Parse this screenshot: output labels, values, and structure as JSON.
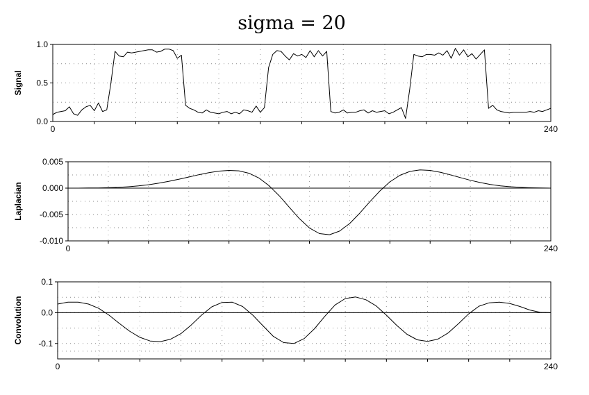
{
  "title": "sigma = 20",
  "chart_data": [
    {
      "type": "line",
      "ylabel": "Signal",
      "xlim": [
        0,
        240
      ],
      "ylim": [
        0.0,
        1.0
      ],
      "x_ticks": [
        "0",
        "240"
      ],
      "y_ticks": [
        {
          "value": 1.0,
          "label": "1.0"
        },
        {
          "value": 0.5,
          "label": "0.5"
        },
        {
          "value": 0.0,
          "label": "0.0"
        }
      ],
      "grid": true,
      "zero_line": false,
      "series": [
        {
          "x": [
            0,
            2,
            4,
            6,
            8,
            10,
            12,
            14,
            16,
            18,
            20,
            22,
            24,
            26,
            28,
            30,
            32,
            34,
            36,
            38,
            40,
            42,
            44,
            46,
            48,
            50,
            52,
            54,
            56,
            58,
            60,
            62,
            64,
            66,
            68,
            70,
            72,
            74,
            76,
            78,
            80,
            82,
            84,
            86,
            88,
            90,
            92,
            94,
            96,
            98,
            100,
            102,
            104,
            106,
            108,
            110,
            112,
            114,
            116,
            118,
            120,
            122,
            124,
            126,
            128,
            130,
            132,
            134,
            136,
            138,
            140,
            142,
            144,
            146,
            148,
            150,
            152,
            154,
            156,
            158,
            160,
            162,
            164,
            166,
            168,
            170,
            172,
            174,
            176,
            178,
            180,
            182,
            184,
            186,
            188,
            190,
            192,
            194,
            196,
            198,
            200,
            202,
            204,
            206,
            208,
            210,
            212,
            214,
            216,
            218,
            220,
            222,
            224,
            226,
            228,
            230,
            232,
            234,
            236,
            238,
            240
          ],
          "values": [
            0.09,
            0.12,
            0.13,
            0.14,
            0.19,
            0.1,
            0.08,
            0.15,
            0.19,
            0.21,
            0.14,
            0.24,
            0.13,
            0.15,
            0.5,
            0.91,
            0.85,
            0.84,
            0.9,
            0.89,
            0.9,
            0.91,
            0.92,
            0.93,
            0.93,
            0.9,
            0.91,
            0.94,
            0.94,
            0.92,
            0.82,
            0.86,
            0.21,
            0.17,
            0.15,
            0.12,
            0.11,
            0.15,
            0.12,
            0.11,
            0.1,
            0.12,
            0.13,
            0.1,
            0.12,
            0.1,
            0.15,
            0.14,
            0.12,
            0.2,
            0.12,
            0.18,
            0.7,
            0.87,
            0.92,
            0.91,
            0.85,
            0.8,
            0.88,
            0.85,
            0.87,
            0.83,
            0.92,
            0.84,
            0.92,
            0.85,
            0.91,
            0.13,
            0.11,
            0.12,
            0.15,
            0.11,
            0.12,
            0.12,
            0.14,
            0.15,
            0.11,
            0.14,
            0.12,
            0.13,
            0.14,
            0.1,
            0.12,
            0.15,
            0.18,
            0.04,
            0.42,
            0.87,
            0.85,
            0.84,
            0.87,
            0.87,
            0.86,
            0.89,
            0.86,
            0.92,
            0.82,
            0.95,
            0.86,
            0.93,
            0.84,
            0.88,
            0.81,
            0.87,
            0.93,
            0.17,
            0.21,
            0.15,
            0.13,
            0.12,
            0.11,
            0.12,
            0.12,
            0.12,
            0.12,
            0.13,
            0.12,
            0.14,
            0.13,
            0.15,
            0.17
          ]
        }
      ]
    },
    {
      "type": "line",
      "ylabel": "Laplacian",
      "xlim": [
        0,
        240
      ],
      "ylim": [
        -0.01,
        0.005
      ],
      "x_ticks": [
        "0",
        "240"
      ],
      "y_ticks": [
        {
          "value": 0.005,
          "label": "0.005"
        },
        {
          "value": 0.0,
          "label": "0.000"
        },
        {
          "value": -0.005,
          "label": "-0.005"
        },
        {
          "value": -0.01,
          "label": "-0.010"
        }
      ],
      "grid": true,
      "zero_line": true,
      "series": [
        {
          "x": [
            0,
            5,
            10,
            15,
            20,
            25,
            30,
            35,
            40,
            45,
            50,
            55,
            60,
            65,
            70,
            75,
            80,
            85,
            90,
            95,
            100,
            105,
            110,
            115,
            120,
            125,
            130,
            135,
            140,
            145,
            150,
            155,
            160,
            165,
            170,
            175,
            180,
            185,
            190,
            195,
            200,
            205,
            210,
            215,
            220,
            225,
            230,
            235,
            240
          ],
          "values": [
            0.0,
            0.0,
            2e-05,
            4e-05,
            8e-05,
            0.00015,
            0.00026,
            0.00042,
            0.00064,
            0.00093,
            0.00128,
            0.00168,
            0.00211,
            0.00254,
            0.00292,
            0.00322,
            0.00336,
            0.00327,
            0.00282,
            0.00189,
            0.00044,
            -0.00146,
            -0.00363,
            -0.00578,
            -0.00755,
            -0.00862,
            -0.00883,
            -0.00815,
            -0.00671,
            -0.00475,
            -0.00259,
            -0.00054,
            0.00118,
            0.00243,
            0.00317,
            0.00345,
            0.00336,
            0.00301,
            0.00253,
            0.002,
            0.00149,
            0.00105,
            0.0007,
            0.00044,
            0.00026,
            0.00014,
            7e-05,
            3e-05,
            0.0
          ]
        }
      ]
    },
    {
      "type": "line",
      "ylabel": "Convolution",
      "xlim": [
        0,
        240
      ],
      "ylim": [
        -0.15,
        0.1
      ],
      "x_ticks": [
        "0",
        "240"
      ],
      "y_ticks": [
        {
          "value": 0.1,
          "label": "0.1"
        },
        {
          "value": 0.0,
          "label": "0.0"
        },
        {
          "value": -0.1,
          "label": "-0.1"
        }
      ],
      "grid": true,
      "zero_line": true,
      "series": [
        {
          "x": [
            0,
            5,
            10,
            15,
            20,
            25,
            30,
            35,
            40,
            45,
            50,
            55,
            60,
            65,
            70,
            75,
            80,
            85,
            90,
            95,
            100,
            105,
            110,
            115,
            120,
            125,
            130,
            135,
            140,
            145,
            150,
            155,
            160,
            165,
            170,
            175,
            180,
            185,
            190,
            195,
            200,
            205,
            210,
            215,
            220,
            225,
            230,
            235,
            240
          ],
          "values": [
            0.028,
            0.034,
            0.034,
            0.028,
            0.014,
            -0.008,
            -0.035,
            -0.06,
            -0.08,
            -0.092,
            -0.094,
            -0.086,
            -0.068,
            -0.04,
            -0.008,
            0.019,
            0.033,
            0.034,
            0.02,
            -0.008,
            -0.043,
            -0.077,
            -0.097,
            -0.1,
            -0.084,
            -0.052,
            -0.012,
            0.025,
            0.046,
            0.051,
            0.042,
            0.022,
            -0.008,
            -0.041,
            -0.07,
            -0.088,
            -0.093,
            -0.086,
            -0.066,
            -0.036,
            -0.004,
            0.021,
            0.032,
            0.034,
            0.03,
            0.02,
            0.008,
            0.001,
            0.0
          ]
        }
      ]
    }
  ]
}
